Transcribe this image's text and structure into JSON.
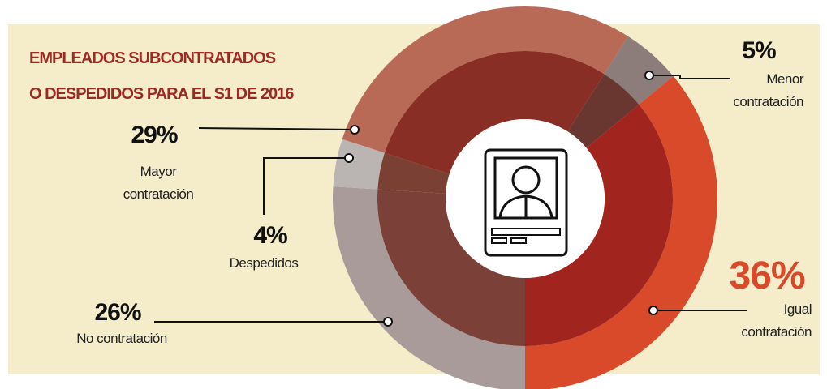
{
  "chart_data": {
    "type": "donut",
    "title": [
      "EMPLEADOS SUBCONTRATADOS",
      "O DESPEDIDOS PARA EL S1 DE 2016"
    ],
    "categories": [
      "Mayor contratación",
      "Menor contratación",
      "Igual contratación",
      "No contratación",
      "Despedidos"
    ],
    "values": [
      29,
      5,
      36,
      26,
      4
    ],
    "value_labels": [
      "29%",
      "5%",
      "36%",
      "26%",
      "4%"
    ],
    "colors": [
      "#b86a57",
      "#8c7d7a",
      "#d84a2a",
      "#a99b99",
      "#bab5b3"
    ],
    "inner_colors": [
      "#892e25",
      "#6a3730",
      "#a1241f",
      "#7b4138",
      "#7b4034"
    ]
  }
}
